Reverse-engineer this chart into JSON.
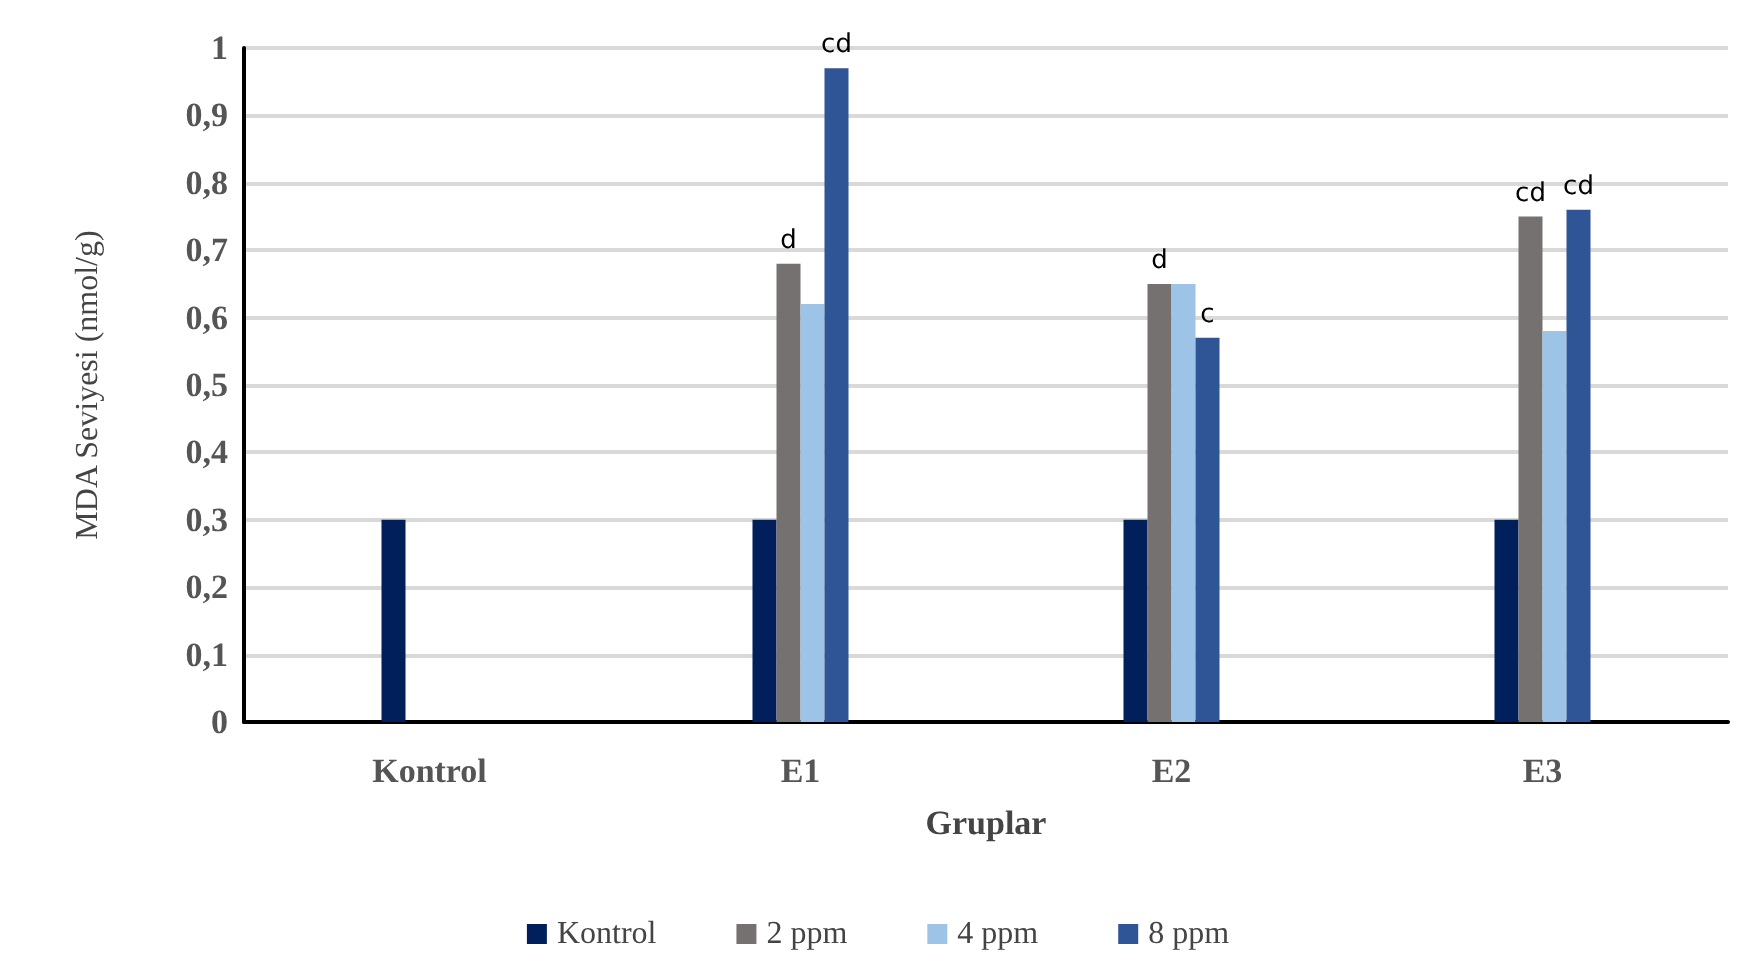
{
  "chart_data": {
    "type": "bar",
    "xlabel": "Gruplar",
    "ylabel": "MDA Seviyesi (nmol/g)",
    "categories": [
      "Kontrol",
      "E1",
      "E2",
      "E3"
    ],
    "series": [
      {
        "name": "Kontrol",
        "color": "#001f5b",
        "values": [
          0.3,
          0.3,
          0.3,
          0.3
        ]
      },
      {
        "name": "2 ppm",
        "color": "#767171",
        "values": [
          null,
          0.68,
          0.65,
          0.75
        ],
        "value_labels": [
          null,
          "d",
          "d",
          "cd"
        ]
      },
      {
        "name": "4 ppm",
        "color": "#9dc3e6",
        "values": [
          null,
          0.62,
          0.65,
          0.58
        ]
      },
      {
        "name": "8 ppm",
        "color": "#2f5597",
        "values": [
          null,
          0.97,
          0.57,
          0.76
        ],
        "value_labels": [
          null,
          "cd",
          "c",
          "cd"
        ]
      }
    ],
    "ylim": [
      0,
      1
    ],
    "yticks": [
      0,
      {
        "value": 0.1,
        "label": "0,1"
      },
      {
        "value": 0.2,
        "label": "0,2"
      },
      {
        "value": 0.3,
        "label": "0,3"
      },
      {
        "value": 0.4,
        "label": "0,4"
      },
      {
        "value": 0.5,
        "label": "0,5"
      },
      {
        "value": 0.6,
        "label": "0,6"
      },
      {
        "value": 0.7,
        "label": "0,7"
      },
      {
        "value": 0.8,
        "label": "0,8"
      },
      {
        "value": 0.9,
        "label": "0,9"
      },
      1
    ],
    "grid": "y",
    "legend": "bottom"
  }
}
